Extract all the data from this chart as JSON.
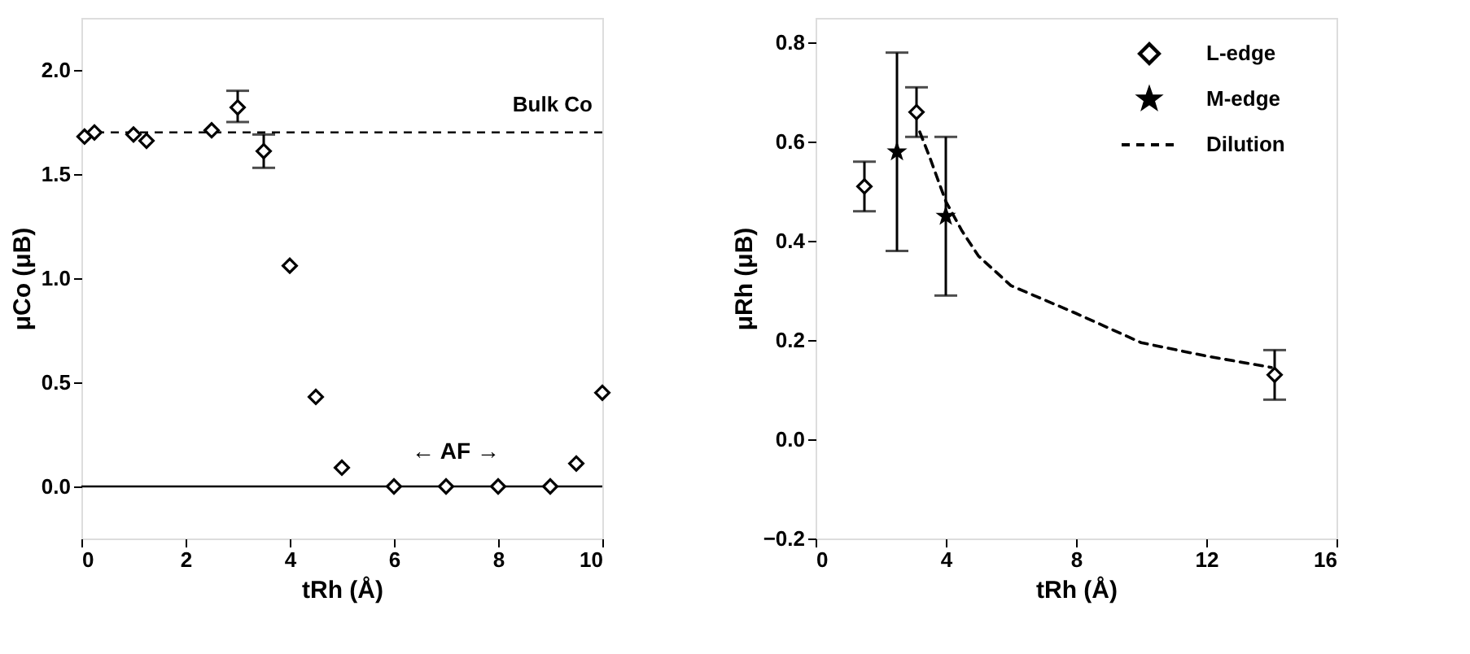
{
  "chart_data": [
    {
      "type": "scatter",
      "xlabel": "tRh (Å)",
      "ylabel": "μCo (μB)",
      "xlim": [
        0,
        10
      ],
      "ylim": [
        -0.25,
        2.25
      ],
      "xticks": [
        0,
        2,
        4,
        6,
        8,
        10
      ],
      "yticks": [
        {
          "value": 0,
          "label": "0.0"
        },
        0.5,
        {
          "value": 1,
          "label": "1.0"
        },
        1.5,
        {
          "value": 2,
          "label": "2.0"
        }
      ],
      "grid": false,
      "marker": "diamond",
      "series": [
        {
          "color": "#000000",
          "x": [
            0.06,
            0.25,
            1.0,
            1.25,
            2.5,
            3.0,
            3.5,
            4.0,
            4.5,
            5.0,
            6.0,
            7.0,
            8.0,
            9.0,
            9.5,
            10.0
          ],
          "values": [
            1.68,
            1.7,
            1.69,
            1.66,
            1.71,
            1.82,
            1.61,
            1.06,
            0.43,
            0.09,
            0,
            0,
            0,
            0,
            0.11,
            0.45
          ],
          "errors": [
            null,
            null,
            null,
            null,
            null,
            [
              1.75,
              1.9
            ],
            [
              1.53,
              1.69
            ],
            null,
            null,
            null,
            null,
            null,
            null,
            null,
            null,
            null
          ]
        }
      ],
      "ref_lines": [
        {
          "axis": "y",
          "value": 1.7,
          "label": "Bulk Co",
          "color": "#000000",
          "line_style": "dashed"
        },
        {
          "axis": "y",
          "value": 0,
          "color": "#000000",
          "line_style": "solid"
        }
      ],
      "annotations": [
        "←  AF  →"
      ]
    },
    {
      "type": "scatter",
      "xlabel": "tRh (Å)",
      "ylabel": "μRh (μB)",
      "xlim": [
        0,
        16
      ],
      "ylim": [
        -0.2,
        0.85
      ],
      "xticks": [
        0,
        4,
        8,
        12,
        16
      ],
      "yticks": [
        -0.2,
        {
          "value": 0,
          "label": "0.0"
        },
        0.2,
        0.4,
        0.6,
        0.8
      ],
      "grid": false,
      "legend": "top right",
      "series": [
        {
          "name": "L-edge",
          "color": "#000000",
          "marker": "diamond",
          "x": [
            1.5,
            3.1,
            14.1
          ],
          "values": [
            0.51,
            0.66,
            0.13
          ],
          "errors": [
            [
              0.46,
              0.56
            ],
            [
              0.61,
              0.71
            ],
            [
              0.08,
              0.18
            ]
          ]
        },
        {
          "name": "M-edge",
          "color": "#000000",
          "marker": "star",
          "x": [
            2.5,
            4.0
          ],
          "values": [
            0.58,
            0.45
          ],
          "errors": [
            [
              0.38,
              0.78
            ],
            [
              0.29,
              0.61
            ]
          ]
        },
        {
          "name": "Dilution",
          "type": "line",
          "color": "#000000",
          "marker": "none",
          "line_style": "dashed",
          "x": [
            3.2,
            3.5,
            4.0,
            4.5,
            5,
            6,
            8,
            10,
            12,
            14
          ],
          "values": [
            0.62,
            0.57,
            0.48,
            0.42,
            0.37,
            0.31,
            0.254,
            0.195,
            0.168,
            0.145
          ]
        }
      ]
    }
  ]
}
